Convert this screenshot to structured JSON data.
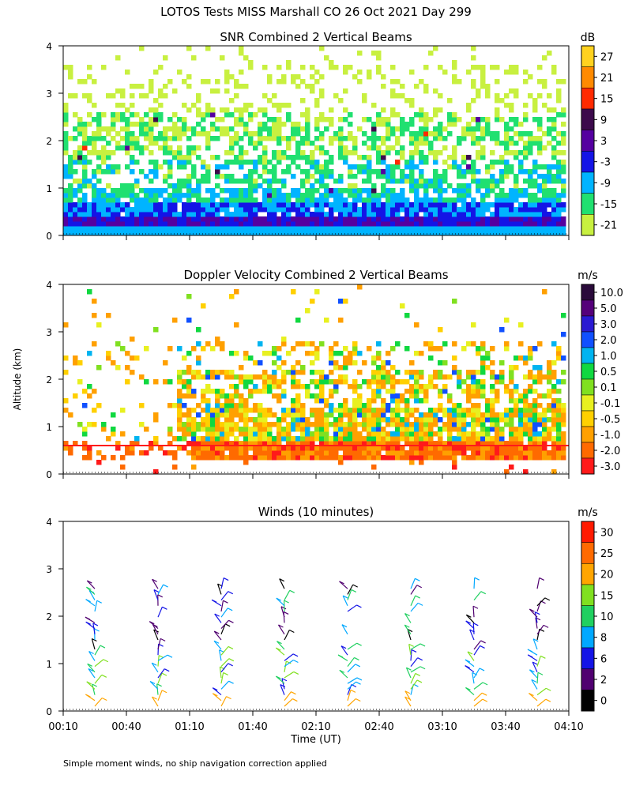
{
  "figure": {
    "title": "LOTOS Tests MISS Marshall CO  26 Oct 2021 Day 299",
    "ylabel": "Altitude (km)",
    "xlabel": "Time (UT)",
    "footnote": "Simple moment winds, no ship navigation correction applied"
  },
  "chart_data": [
    {
      "type": "heatmap",
      "title": "SNR Combined 2 Vertical Beams",
      "colorbar_unit": "dB",
      "colorbar_ticks": [
        "27",
        "21",
        "15",
        "9",
        "3",
        "-3",
        "-9",
        "-15",
        "-21"
      ],
      "colors": [
        "#ffd21f",
        "#ff8a00",
        "#ff2a00",
        "#3c0a4c",
        "#5500a0",
        "#1414e6",
        "#00b4ff",
        "#20e070",
        "#c8f040"
      ],
      "ylim": [
        0,
        4
      ],
      "yticks": [
        "0",
        "1",
        "2",
        "3",
        "4"
      ],
      "xlim": [
        "00:10",
        "04:10"
      ],
      "summary_layers_km": [
        {
          "altitude_km": 0.3,
          "snr_dB": 3
        },
        {
          "altitude_km": 0.5,
          "snr_dB": -6
        },
        {
          "altitude_km": 0.8,
          "snr_dB": -12
        },
        {
          "altitude_km": 1.2,
          "snr_dB": -12
        },
        {
          "altitude_km": 2.2,
          "snr_dB": -18
        }
      ],
      "grid": false
    },
    {
      "type": "heatmap",
      "title": "Doppler Velocity Combined 2 Vertical Beams",
      "colorbar_unit": "m/s",
      "colorbar_ticks": [
        "10.0",
        "5.0",
        "3.0",
        "2.0",
        "1.0",
        "0.5",
        "0.1",
        "-0.1",
        "-0.5",
        "-1.0",
        "-2.0",
        "-3.0"
      ],
      "colors": [
        "#2a0a3a",
        "#55007a",
        "#2a1ad2",
        "#1050ff",
        "#00b4f0",
        "#10d840",
        "#80e020",
        "#e8f020",
        "#ffd000",
        "#ffa000",
        "#ff6a00",
        "#ff1a1a"
      ],
      "ylim": [
        0,
        4
      ],
      "yticks": [
        "0",
        "1",
        "2",
        "3",
        "4"
      ],
      "xlim": [
        "00:10",
        "04:10"
      ],
      "grid": false
    },
    {
      "type": "scatter",
      "title": "Winds (10 minutes)",
      "colorbar_unit": "m/s",
      "colorbar_ticks": [
        "30",
        "25",
        "20",
        "15",
        "10",
        "8",
        "6",
        "2",
        "0"
      ],
      "colors": [
        "#ff1a00",
        "#ff6a00",
        "#ffa500",
        "#80e020",
        "#20d060",
        "#00a8ff",
        "#1414e6",
        "#500070",
        "#000000"
      ],
      "ylim": [
        0,
        4
      ],
      "yticks": [
        "0",
        "1",
        "2",
        "3",
        "4"
      ],
      "xticks": [
        "00:10",
        "00:40",
        "01:10",
        "01:40",
        "02:10",
        "02:40",
        "03:10",
        "03:40",
        "04:10"
      ],
      "profile_times": [
        "00:25",
        "00:55",
        "01:25",
        "01:55",
        "02:25",
        "02:55",
        "03:25",
        "03:55"
      ],
      "grid": false
    }
  ]
}
